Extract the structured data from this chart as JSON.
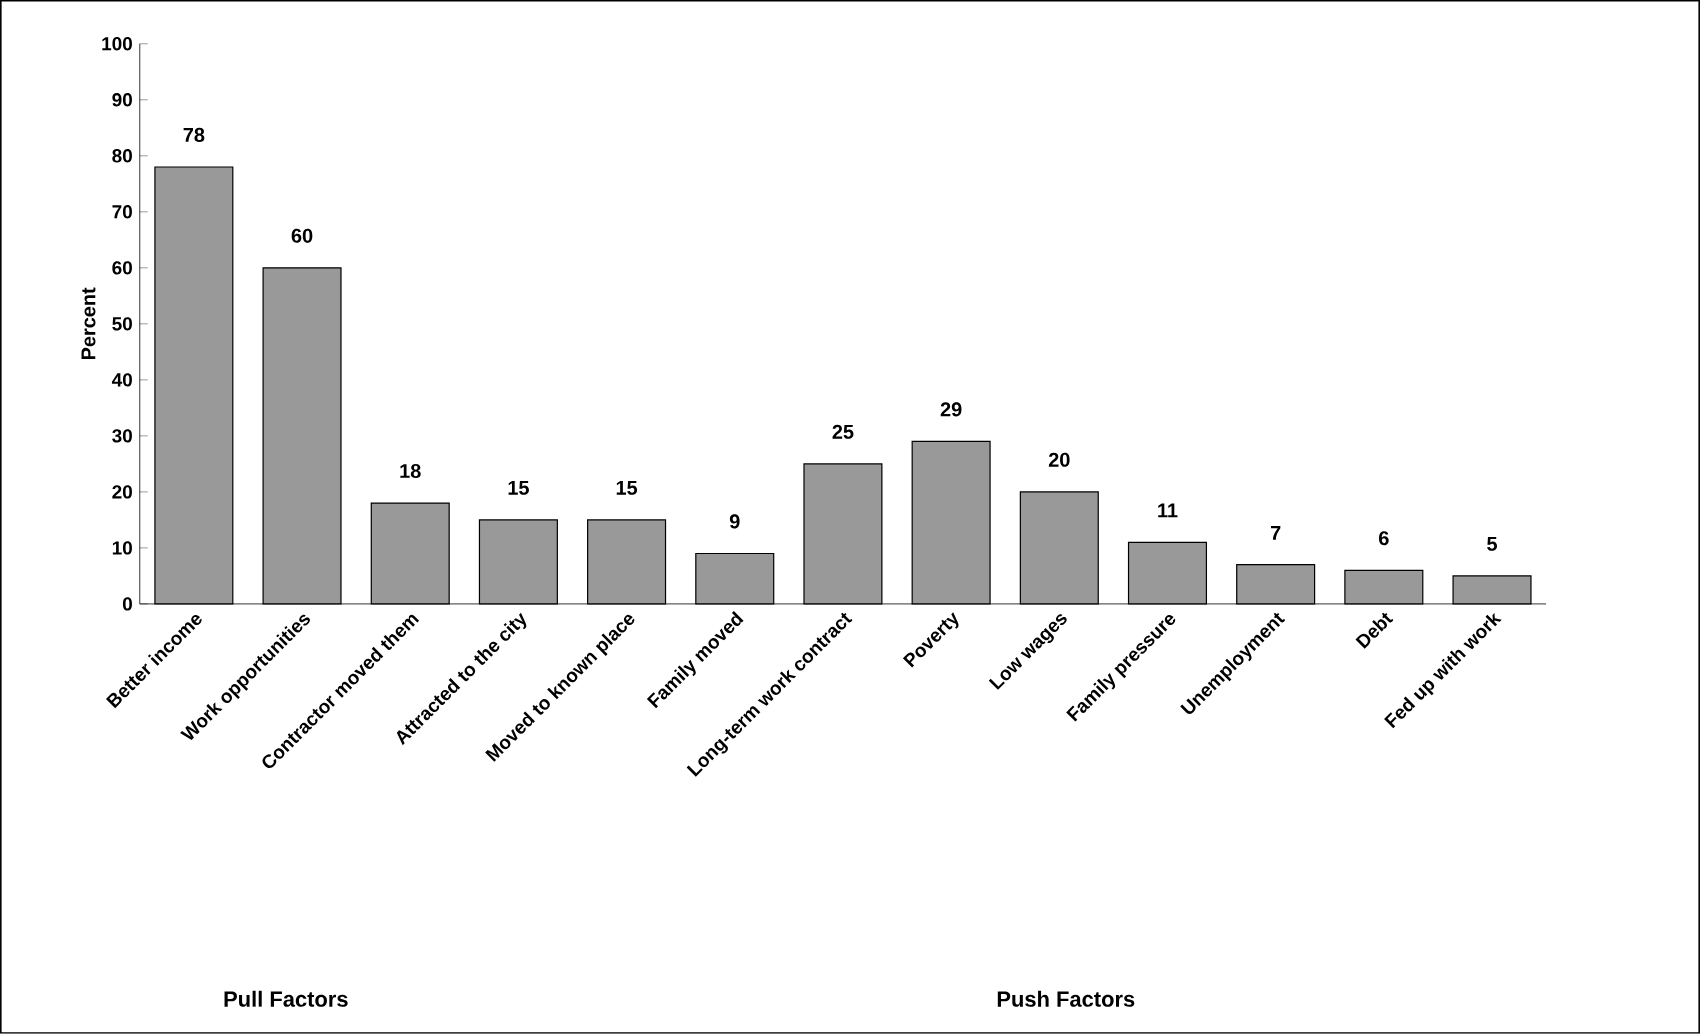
{
  "chart_data": {
    "type": "bar",
    "ylabel": "Percent",
    "categories": [
      "Better income",
      "Work opportunities",
      "Contractor moved them",
      "Attracted to the city",
      "Moved to known place",
      "Family moved",
      "Long-term work contract",
      "Poverty",
      "Low wages",
      "Family pressure",
      "Unemployment",
      "Debt",
      "Fed up with work"
    ],
    "values": [
      78,
      60,
      18,
      15,
      15,
      9,
      25,
      29,
      20,
      11,
      7,
      6,
      5
    ],
    "color": "#999999",
    "ylim": [
      0,
      100
    ],
    "yticks": [
      0,
      10,
      20,
      30,
      40,
      50,
      60,
      70,
      80,
      90,
      100
    ],
    "data_labels": true,
    "grid": false,
    "annotations": [
      "Pull Factors",
      "Push Factors"
    ]
  }
}
